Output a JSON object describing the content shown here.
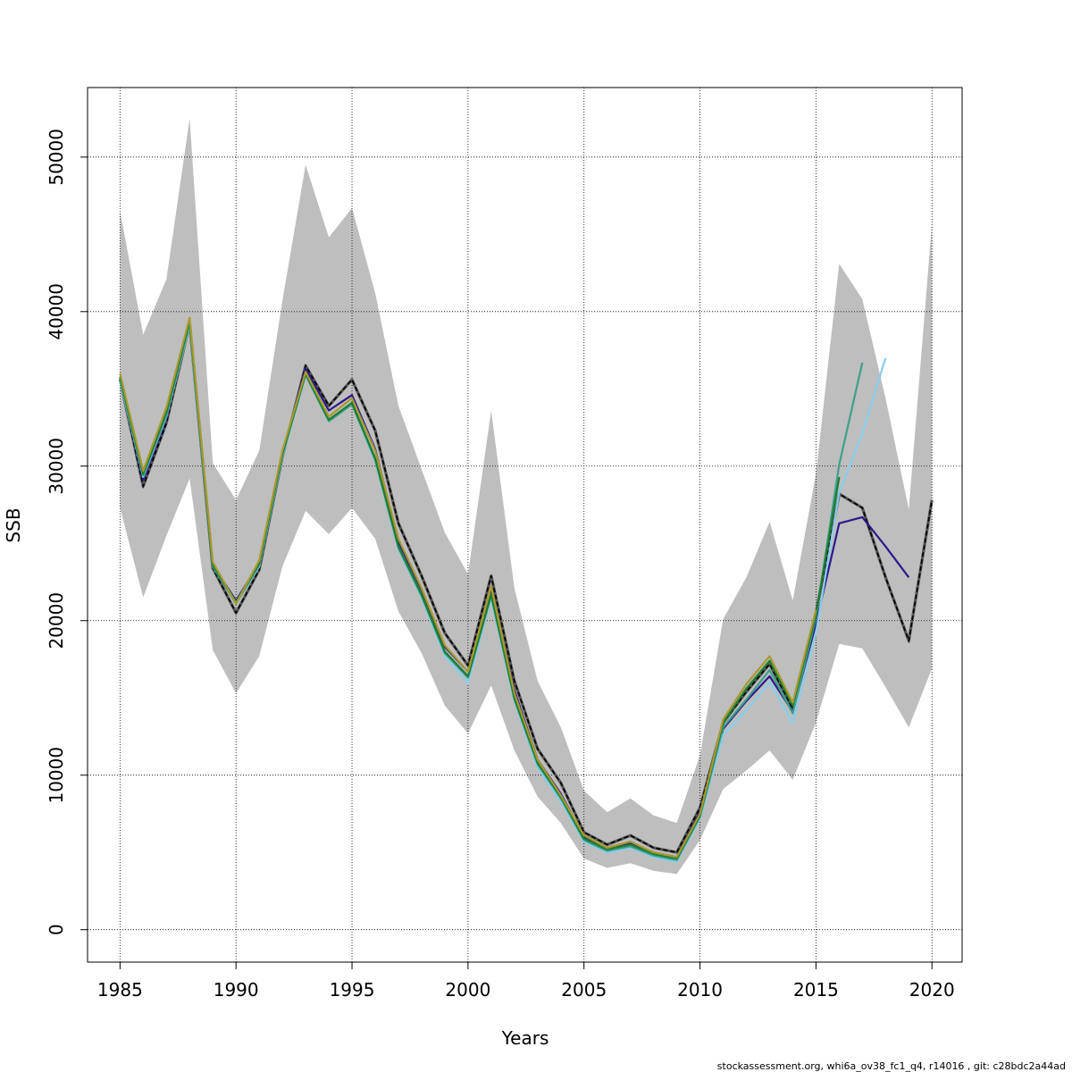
{
  "chart_data": {
    "type": "line",
    "xlabel": "Years",
    "ylabel": "SSB",
    "xlim": [
      1983.6,
      2021.3
    ],
    "ylim": [
      -2100,
      54500
    ],
    "xticks": [
      1985,
      1990,
      1995,
      2000,
      2005,
      2010,
      2015,
      2020
    ],
    "yticks": [
      0,
      10000,
      20000,
      30000,
      40000,
      50000
    ],
    "grid": true,
    "legend": "none",
    "footer": "stockassessment.org, whi6a_ov38_fc1_q4, r14016 , git: c28bdc2a44ad",
    "band_color": "#bebebe",
    "band": {
      "x": [
        1985,
        1986,
        1987,
        1988,
        1989,
        1990,
        1991,
        1992,
        1993,
        1994,
        1995,
        1996,
        1997,
        1998,
        1999,
        2000,
        2001,
        2002,
        2003,
        2004,
        2005,
        2006,
        2007,
        2008,
        2009,
        2010,
        2011,
        2012,
        2013,
        2014,
        2015,
        2016,
        2017,
        2018,
        2019,
        2020
      ],
      "upper": [
        46500,
        38500,
        42100,
        52500,
        30200,
        27800,
        31000,
        40700,
        49500,
        44800,
        46700,
        41200,
        33900,
        29800,
        25700,
        23000,
        33600,
        22100,
        16100,
        13100,
        9000,
        7600,
        8500,
        7400,
        6900,
        11300,
        20100,
        22800,
        26400,
        21300,
        29500,
        43100,
        40800,
        34400,
        27200,
        45700
      ],
      "lower": [
        27300,
        21500,
        25500,
        29200,
        18100,
        15300,
        17700,
        23500,
        27100,
        25600,
        27300,
        25300,
        20600,
        17900,
        14500,
        12700,
        15800,
        11600,
        8600,
        6900,
        4600,
        4000,
        4300,
        3800,
        3600,
        5800,
        9100,
        10300,
        11600,
        9700,
        13400,
        18500,
        18200,
        15700,
        13100,
        16900
      ]
    },
    "series": [
      {
        "color": "#000000",
        "dashed": true,
        "x": [
          1985,
          1986,
          1987,
          1988,
          1989,
          1990,
          1991,
          1992,
          1993,
          1994,
          1995,
          1996,
          1997,
          1998,
          1999,
          2000,
          2001,
          2002,
          2003,
          2004,
          2005,
          2006,
          2007,
          2008,
          2009,
          2010,
          2011,
          2012,
          2013,
          2014,
          2015,
          2016,
          2017,
          2018,
          2019,
          2020
        ],
        "values": [
          35600,
          28700,
          32800,
          39200,
          23400,
          20500,
          23300,
          30600,
          36500,
          33900,
          35600,
          32300,
          26300,
          22900,
          19200,
          17100,
          22900,
          16100,
          11700,
          9500,
          6300,
          5500,
          6100,
          5300,
          5000,
          7900,
          13400,
          15400,
          17200,
          14300,
          20500,
          28200,
          27300,
          22800,
          18700,
          27800
        ]
      },
      {
        "color": "#2b1a8c",
        "dashed": false,
        "x": [
          1985,
          1986,
          1987,
          1988,
          1989,
          1990,
          1991,
          1992,
          1993,
          1994,
          1995,
          1996,
          1997,
          1998,
          1999,
          2000,
          2001,
          2002,
          2003,
          2004,
          2005,
          2006,
          2007,
          2008,
          2009,
          2010,
          2011,
          2012,
          2013,
          2014,
          2015,
          2016,
          2017,
          2018,
          2019
        ],
        "values": [
          35700,
          29100,
          33100,
          39300,
          23600,
          21300,
          23700,
          30800,
          36300,
          33600,
          34600,
          31100,
          25100,
          22000,
          18300,
          16700,
          22000,
          15500,
          11000,
          8800,
          6000,
          5300,
          5600,
          5000,
          4700,
          7600,
          13000,
          14800,
          16400,
          14100,
          19800,
          26300,
          26700,
          24800,
          22800
        ]
      },
      {
        "color": "#87ceeb",
        "dashed": false,
        "x": [
          1985,
          1986,
          1987,
          1988,
          1989,
          1990,
          1991,
          1992,
          1993,
          1994,
          1995,
          1996,
          1997,
          1998,
          1999,
          2000,
          2001,
          2002,
          2003,
          2004,
          2005,
          2006,
          2007,
          2008,
          2009,
          2010,
          2011,
          2012,
          2013,
          2014,
          2015,
          2016,
          2017,
          2018
        ],
        "values": [
          35500,
          29300,
          33200,
          39100,
          23500,
          21100,
          23500,
          30600,
          35900,
          33000,
          34000,
          30300,
          24600,
          21500,
          17700,
          16000,
          21400,
          14800,
          10500,
          8300,
          5700,
          5000,
          5300,
          4700,
          4400,
          7200,
          12600,
          14200,
          16000,
          13400,
          19200,
          28300,
          32100,
          37000
        ]
      },
      {
        "color": "#3ea08a",
        "dashed": false,
        "x": [
          1985,
          1986,
          1987,
          1988,
          1989,
          1990,
          1991,
          1992,
          1993,
          1994,
          1995,
          1996,
          1997,
          1998,
          1999,
          2000,
          2001,
          2002,
          2003,
          2004,
          2005,
          2006,
          2007,
          2008,
          2009,
          2010,
          2011,
          2012,
          2013,
          2014,
          2015,
          2016,
          2017
        ],
        "values": [
          35600,
          29400,
          33300,
          39200,
          23500,
          21100,
          23600,
          30700,
          35900,
          32900,
          34000,
          30400,
          24700,
          21600,
          17900,
          16300,
          21600,
          14900,
          10700,
          8500,
          5800,
          5100,
          5400,
          4800,
          4500,
          7300,
          13100,
          14900,
          16800,
          14000,
          20200,
          30100,
          36700
        ]
      },
      {
        "color": "#1e7d32",
        "dashed": false,
        "x": [
          1985,
          1986,
          1987,
          1988,
          1989,
          1990,
          1991,
          1992,
          1993,
          1994,
          1995,
          1996,
          1997,
          1998,
          1999,
          2000,
          2001,
          2002,
          2003,
          2004,
          2005,
          2006,
          2007,
          2008,
          2009,
          2010,
          2011,
          2012,
          2013,
          2014,
          2015,
          2016
        ],
        "values": [
          35800,
          29500,
          33500,
          39400,
          23600,
          21200,
          23700,
          30800,
          36000,
          33000,
          34100,
          30500,
          24800,
          21700,
          18000,
          16400,
          21700,
          15000,
          10800,
          8600,
          5900,
          5200,
          5500,
          4900,
          4600,
          7400,
          13400,
          15600,
          17400,
          14500,
          20400,
          29300
        ]
      },
      {
        "color": "#a89a2e",
        "dashed": false,
        "x": [
          1985,
          1986,
          1987,
          1988,
          1989,
          1990,
          1991,
          1992,
          1993,
          1994,
          1995,
          1996,
          1997,
          1998,
          1999,
          2000,
          2001,
          2002,
          2003,
          2004,
          2005,
          2006,
          2007,
          2008,
          2009,
          2010,
          2011,
          2012,
          2013,
          2014,
          2015
        ],
        "values": [
          36000,
          29700,
          33800,
          39600,
          23800,
          21100,
          23900,
          31000,
          36100,
          33200,
          34400,
          31000,
          25300,
          22100,
          18400,
          16700,
          22200,
          15300,
          11000,
          8700,
          6100,
          5300,
          5700,
          5000,
          4700,
          7500,
          13600,
          15900,
          17700,
          14700,
          20700
        ]
      }
    ]
  }
}
